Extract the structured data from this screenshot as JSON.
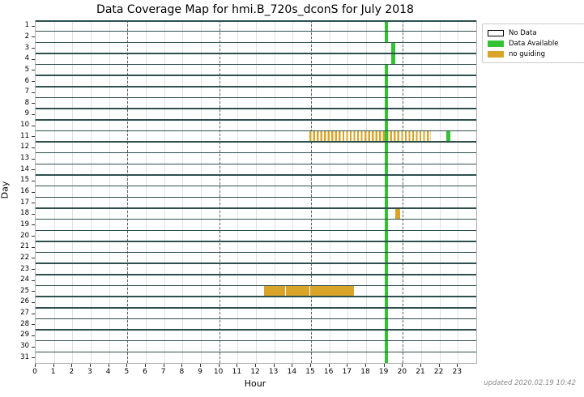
{
  "chart_data": {
    "type": "heatmap",
    "title": "Data Coverage Map for hmi.B_720s_dconS for July 2018",
    "xlabel": "Hour",
    "ylabel": "Day",
    "x_range": [
      0,
      24
    ],
    "x_ticks": [
      0,
      1,
      2,
      3,
      4,
      5,
      6,
      7,
      8,
      9,
      10,
      11,
      12,
      13,
      14,
      15,
      16,
      17,
      18,
      19,
      20,
      21,
      22,
      23
    ],
    "y_days": 31,
    "dashdot_hours": [
      5,
      10,
      15,
      20
    ],
    "grid": true,
    "legend_position": "outside-top-right",
    "colors": {
      "no_data": "#ffffff",
      "available": "#33c233",
      "no_guiding": "#d9a427",
      "row_separator": "#2f4f4f",
      "minor_grid": "#e1e1e1"
    },
    "legend": [
      {
        "label": "No Data",
        "type": "no_data"
      },
      {
        "label": "Data Available",
        "type": "available"
      },
      {
        "label": "no guiding",
        "type": "no_guiding"
      }
    ],
    "segments": [
      {
        "day": 1,
        "start": 19.0,
        "end": 19.2,
        "type": "available"
      },
      {
        "day": 2,
        "start": 19.0,
        "end": 19.2,
        "type": "available"
      },
      {
        "day": 3,
        "start": 19.35,
        "end": 19.6,
        "type": "available"
      },
      {
        "day": 4,
        "start": 19.35,
        "end": 19.6,
        "type": "available"
      },
      {
        "day": 5,
        "start": 19.0,
        "end": 19.2,
        "type": "available"
      },
      {
        "day": 6,
        "start": 19.0,
        "end": 19.2,
        "type": "available"
      },
      {
        "day": 7,
        "start": 19.0,
        "end": 19.2,
        "type": "available"
      },
      {
        "day": 8,
        "start": 19.0,
        "end": 19.2,
        "type": "available"
      },
      {
        "day": 9,
        "start": 19.0,
        "end": 19.2,
        "type": "available"
      },
      {
        "day": 10,
        "start": 19.0,
        "end": 19.2,
        "type": "available"
      },
      {
        "day": 11,
        "start": 14.9,
        "end": 21.55,
        "type": "no_guiding_striped"
      },
      {
        "day": 11,
        "start": 19.0,
        "end": 19.2,
        "type": "available"
      },
      {
        "day": 11,
        "start": 22.35,
        "end": 22.6,
        "type": "available"
      },
      {
        "day": 12,
        "start": 19.0,
        "end": 19.2,
        "type": "available"
      },
      {
        "day": 13,
        "start": 19.0,
        "end": 19.2,
        "type": "available"
      },
      {
        "day": 14,
        "start": 19.0,
        "end": 19.2,
        "type": "available"
      },
      {
        "day": 15,
        "start": 19.0,
        "end": 19.2,
        "type": "available"
      },
      {
        "day": 16,
        "start": 19.0,
        "end": 19.2,
        "type": "available"
      },
      {
        "day": 17,
        "start": 19.0,
        "end": 19.2,
        "type": "available"
      },
      {
        "day": 18,
        "start": 19.0,
        "end": 19.2,
        "type": "available"
      },
      {
        "day": 18,
        "start": 19.6,
        "end": 19.85,
        "type": "no_guiding"
      },
      {
        "day": 19,
        "start": 19.0,
        "end": 19.2,
        "type": "available"
      },
      {
        "day": 20,
        "start": 19.0,
        "end": 19.2,
        "type": "available"
      },
      {
        "day": 21,
        "start": 19.0,
        "end": 19.2,
        "type": "available"
      },
      {
        "day": 22,
        "start": 19.0,
        "end": 19.2,
        "type": "available"
      },
      {
        "day": 23,
        "start": 19.0,
        "end": 19.2,
        "type": "available"
      },
      {
        "day": 24,
        "start": 19.0,
        "end": 19.2,
        "type": "available"
      },
      {
        "day": 25,
        "start": 12.45,
        "end": 13.6,
        "type": "no_guiding"
      },
      {
        "day": 25,
        "start": 13.65,
        "end": 14.9,
        "type": "no_guiding"
      },
      {
        "day": 25,
        "start": 14.95,
        "end": 17.35,
        "type": "no_guiding"
      },
      {
        "day": 25,
        "start": 19.0,
        "end": 19.2,
        "type": "available"
      },
      {
        "day": 26,
        "start": 19.0,
        "end": 19.2,
        "type": "available"
      },
      {
        "day": 27,
        "start": 19.0,
        "end": 19.2,
        "type": "available"
      },
      {
        "day": 28,
        "start": 19.0,
        "end": 19.2,
        "type": "available"
      },
      {
        "day": 29,
        "start": 19.0,
        "end": 19.2,
        "type": "available"
      },
      {
        "day": 30,
        "start": 19.0,
        "end": 19.2,
        "type": "available"
      },
      {
        "day": 31,
        "start": 19.0,
        "end": 19.2,
        "type": "available"
      }
    ],
    "updated_note": "updated 2020.02.19 10:42"
  }
}
